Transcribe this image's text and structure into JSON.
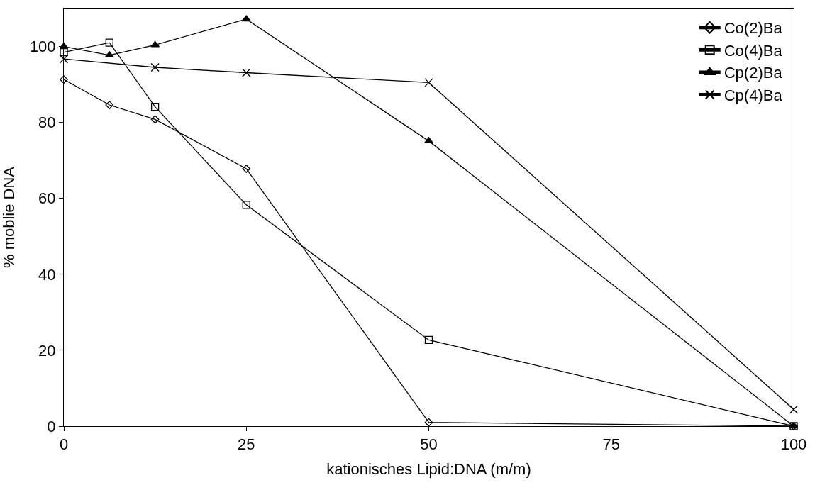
{
  "chart_data": {
    "type": "line",
    "xlabel": "kationisches Lipid:DNA (m/m)",
    "ylabel": "% moblie DNA",
    "x": [
      0,
      6.25,
      12.5,
      25,
      50,
      100
    ],
    "series": [
      {
        "name": "Co(2)Ba",
        "color": "#000000",
        "marker": "diamond",
        "values": [
          91.3,
          84.6,
          80.8,
          67.8,
          1,
          0
        ]
      },
      {
        "name": "Co(4)Ba",
        "color": "#000000",
        "marker": "square",
        "values": [
          98.5,
          101,
          84.1,
          58.3,
          22.7,
          0
        ]
      },
      {
        "name": "Cp(2)Ba",
        "color": "#000000",
        "marker": "triangle",
        "values": [
          100,
          97.7,
          100.4,
          107.2,
          75.1,
          0
        ]
      },
      {
        "name": "Cp(4)Ba",
        "color": "#000000",
        "marker": "cross",
        "values": [
          96.7,
          null,
          94.5,
          93.1,
          90.5,
          4.4
        ]
      }
    ],
    "xlim": [
      0,
      100
    ],
    "xticks": [
      0,
      25,
      50,
      75,
      100
    ],
    "ylim": [
      0,
      110
    ],
    "yticks": [
      0,
      20,
      40,
      60,
      80,
      100
    ],
    "legend": "top right",
    "line_style": "solid"
  }
}
